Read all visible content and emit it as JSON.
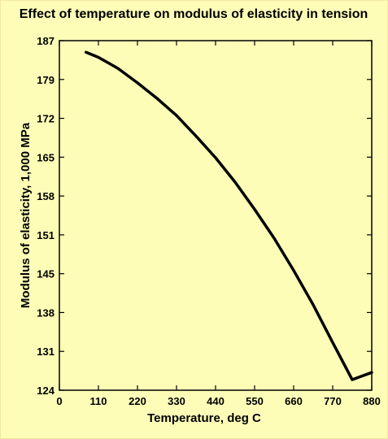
{
  "chart_data": {
    "type": "line",
    "title": "Effect of temperature on modulus of elasticity in tension",
    "xlabel": "Temperature, deg C",
    "ylabel": "Modulus of elasticity, 1,000 MPa",
    "xlim": [
      0,
      880
    ],
    "ylim": [
      124,
      187
    ],
    "x_ticks": [
      "0",
      "110",
      "220",
      "330",
      "440",
      "550",
      "660",
      "770",
      "880"
    ],
    "y_ticks": [
      "187",
      "179",
      "172",
      "165",
      "158",
      "151",
      "145",
      "138",
      "131",
      "124"
    ],
    "grid": false,
    "series": [
      {
        "color": "#000000",
        "x": [
          75,
          110,
          165,
          220,
          275,
          330,
          385,
          440,
          495,
          550,
          605,
          660,
          715,
          770,
          825,
          880
        ],
        "y": [
          184.9,
          184.0,
          182.0,
          179.4,
          176.6,
          173.5,
          169.8,
          165.9,
          161.5,
          156.6,
          151.4,
          145.6,
          139.4,
          132.6,
          125.9,
          127.2
        ]
      }
    ]
  }
}
